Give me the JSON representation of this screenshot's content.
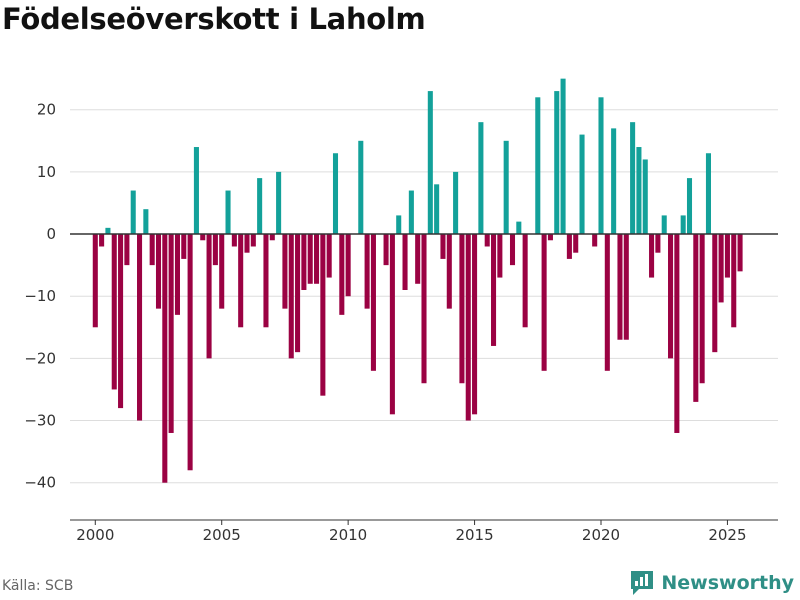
{
  "title": "Födelseöverskott i Laholm",
  "source": "Källa: SCB",
  "brand": {
    "name": "Newsworthy",
    "icon": "newsworthy-logo-icon"
  },
  "colors": {
    "positive": "#13a19a",
    "negative": "#9b0243",
    "grid": "#dddddd",
    "zero_line": "#333333"
  },
  "chart_data": {
    "type": "bar",
    "title": "Födelseöverskott i Laholm",
    "xlabel": "",
    "ylabel": "",
    "x_ticks": [
      2000,
      2005,
      2010,
      2015,
      2020,
      2025
    ],
    "y_ticks": [
      20,
      10,
      0,
      -10,
      -20,
      -30,
      -40
    ],
    "xlim": [
      1999.0,
      2027.0
    ],
    "ylim": [
      -46,
      28
    ],
    "grid": true,
    "series": [
      {
        "name": "Födelseöverskott",
        "x": [
          2000.0,
          2000.25,
          2000.5,
          2000.75,
          2001.0,
          2001.25,
          2001.5,
          2001.75,
          2002.0,
          2002.25,
          2002.5,
          2002.75,
          2003.0,
          2003.25,
          2003.5,
          2003.75,
          2004.0,
          2004.25,
          2004.5,
          2004.75,
          2005.0,
          2005.25,
          2005.5,
          2005.75,
          2006.0,
          2006.25,
          2006.5,
          2006.75,
          2007.0,
          2007.25,
          2007.5,
          2007.75,
          2008.0,
          2008.25,
          2008.5,
          2008.75,
          2009.0,
          2009.25,
          2009.5,
          2009.75,
          2010.0,
          2010.25,
          2010.5,
          2010.75,
          2011.0,
          2011.25,
          2011.5,
          2011.75,
          2012.0,
          2012.25,
          2012.5,
          2012.75,
          2013.0,
          2013.25,
          2013.5,
          2013.75,
          2014.0,
          2014.25,
          2014.5,
          2014.75,
          2015.0,
          2015.25,
          2015.5,
          2015.75,
          2016.0,
          2016.25,
          2016.5,
          2016.75,
          2017.0,
          2017.25,
          2017.5,
          2017.75,
          2018.0,
          2018.25,
          2018.5,
          2018.75,
          2019.0,
          2019.25,
          2019.5,
          2019.75,
          2020.0,
          2020.25,
          2020.5,
          2020.75,
          2021.0,
          2021.25,
          2021.5,
          2021.75,
          2022.0,
          2022.25,
          2022.5,
          2022.75,
          2023.0,
          2023.25,
          2023.5,
          2023.75,
          2024.0,
          2024.25,
          2024.5,
          2024.75,
          2025.0,
          2025.25,
          2025.5,
          2025.75
        ],
        "values": [
          -15,
          -2,
          1,
          -25,
          -28,
          -5,
          7,
          -30,
          4,
          -5,
          -12,
          -40,
          -32,
          -13,
          -4,
          -38,
          14,
          -1,
          -20,
          -5,
          -12,
          7,
          -2,
          -15,
          -3,
          -2,
          9,
          -15,
          -1,
          10,
          -12,
          -20,
          -19,
          -9,
          -8,
          -8,
          -26,
          -7,
          13,
          -13,
          -10,
          0,
          15,
          -12,
          -22,
          0,
          -5,
          -29,
          3,
          -9,
          7,
          -8,
          -24,
          23,
          8,
          -4,
          -12,
          10,
          -24,
          -30,
          -29,
          18,
          -2,
          -18,
          -7,
          15,
          -5,
          2,
          -15,
          0,
          22,
          -22,
          -1,
          23,
          25,
          -4,
          -3,
          16,
          0,
          -2,
          22,
          -22,
          17,
          -17,
          -17,
          18,
          14,
          12,
          -7,
          -3,
          3,
          -20,
          -32,
          3,
          9,
          -27,
          -24,
          13,
          -19,
          -11,
          -7,
          -15,
          -6,
          0
        ]
      }
    ]
  }
}
